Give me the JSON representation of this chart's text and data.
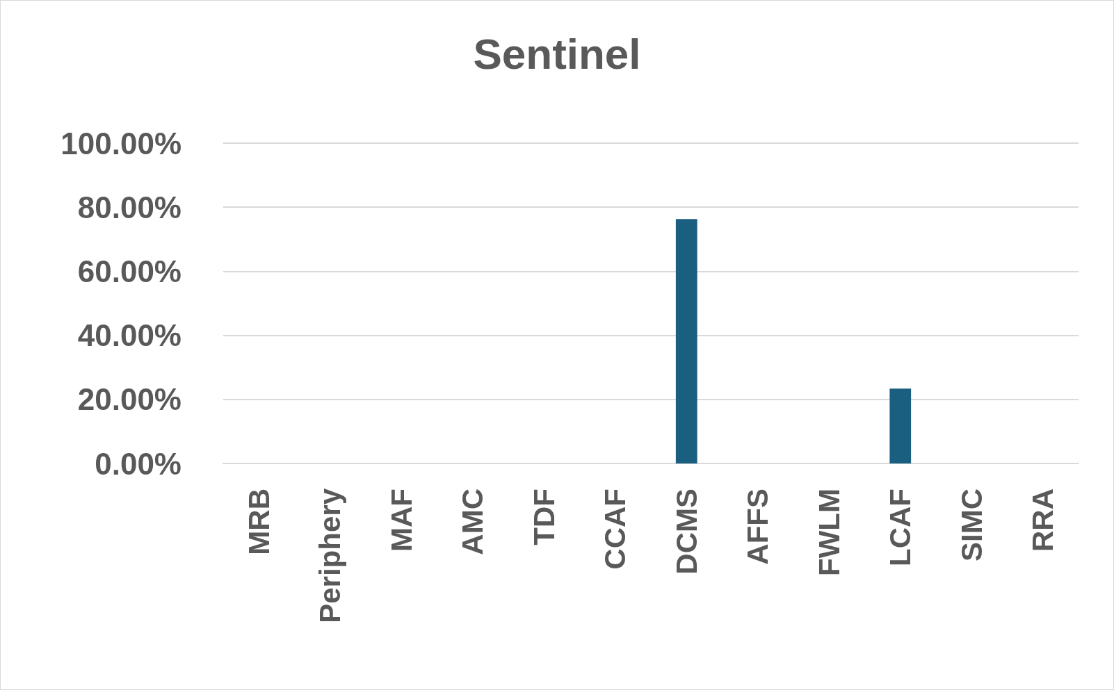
{
  "chart_data": {
    "type": "bar",
    "title": "Sentinel",
    "categories": [
      "MRB",
      "Periphery",
      "MAF",
      "AMC",
      "TDF",
      "CCAF",
      "DCMS",
      "AFFS",
      "FWLM",
      "LCAF",
      "SIMC",
      "RRA"
    ],
    "values": [
      0,
      0,
      0,
      0,
      0,
      0,
      76.3,
      0,
      0,
      23.4,
      0,
      0
    ],
    "color": "#1a5e80",
    "ylim": [
      0,
      100
    ],
    "yticks": [
      {
        "value": 0,
        "label": "0.00%"
      },
      {
        "value": 20,
        "label": "20.00%"
      },
      {
        "value": 40,
        "label": "40.00%"
      },
      {
        "value": 60,
        "label": "60.00%"
      },
      {
        "value": 80,
        "label": "80.00%"
      },
      {
        "value": 100,
        "label": "100.00%"
      }
    ],
    "grid": true
  }
}
